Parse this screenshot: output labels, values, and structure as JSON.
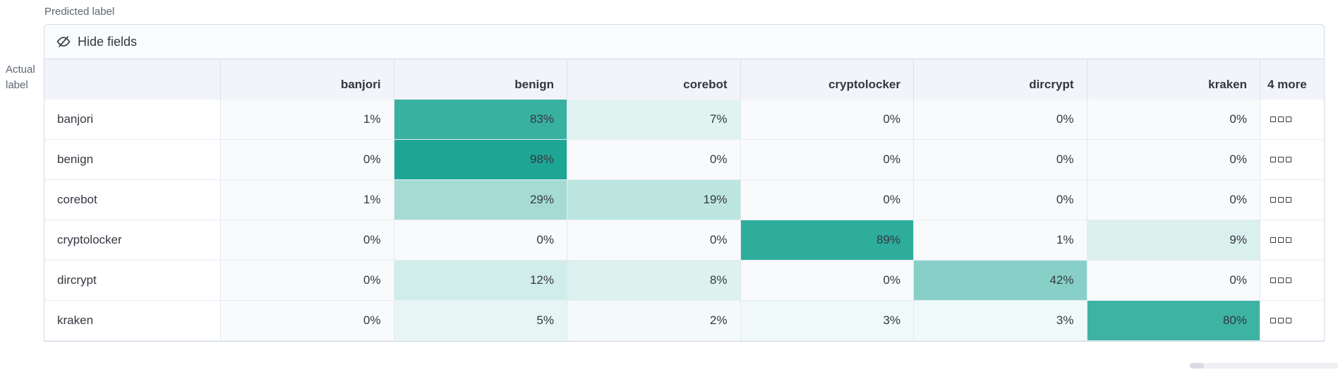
{
  "axis": {
    "predicted": "Predicted label",
    "actual_line1": "Actual",
    "actual_line2": "label"
  },
  "toolbar": {
    "hide_fields_label": "Hide fields",
    "hide_fields_icon": "eye-closed-icon"
  },
  "matrix": {
    "columns": [
      "banjori",
      "benign",
      "corebot",
      "cryptolocker",
      "dircrypt",
      "kraken"
    ],
    "more_header": "4 more",
    "more_actions_icon": "boxes-horizontal-icon",
    "rows": [
      {
        "label": "banjori",
        "values": [
          1,
          83,
          7,
          0,
          0,
          0
        ]
      },
      {
        "label": "benign",
        "values": [
          0,
          98,
          0,
          0,
          0,
          0
        ]
      },
      {
        "label": "corebot",
        "values": [
          1,
          29,
          19,
          0,
          0,
          0
        ]
      },
      {
        "label": "cryptolocker",
        "values": [
          0,
          0,
          0,
          89,
          1,
          9
        ]
      },
      {
        "label": "dircrypt",
        "values": [
          0,
          12,
          8,
          0,
          42,
          0
        ]
      },
      {
        "label": "kraken",
        "values": [
          0,
          5,
          2,
          3,
          3,
          80
        ]
      }
    ],
    "value_suffix": "%",
    "heat_color": "#1ba593",
    "zero_color": "#f8fafc",
    "header_bg": "#f2f4f9",
    "panel_border": "#d3dae6"
  }
}
